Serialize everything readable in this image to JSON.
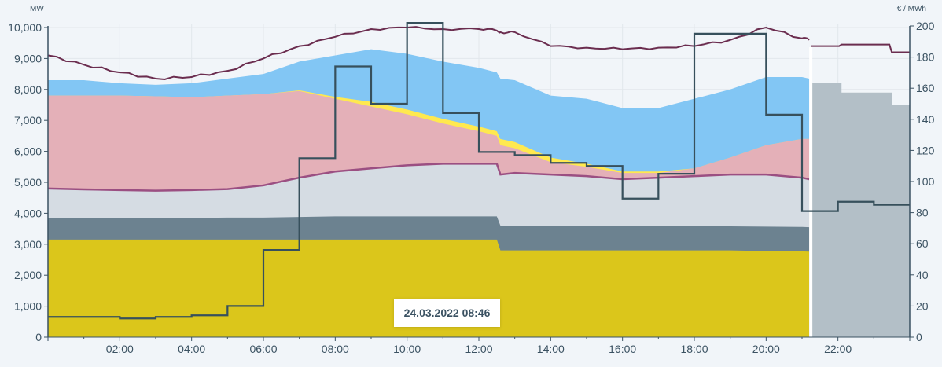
{
  "chart_data": {
    "type": "area",
    "left_axis": {
      "unit": "MW",
      "ylim": [
        0,
        10000
      ],
      "ticks": [
        "0",
        "1,000",
        "2,000",
        "3,000",
        "4,000",
        "5,000",
        "6,000",
        "7,000",
        "8,000",
        "9,000",
        "10,000"
      ]
    },
    "right_axis": {
      "unit": "€ / MWh",
      "ylim": [
        0,
        200
      ],
      "ticks": [
        "0",
        "20",
        "40",
        "60",
        "80",
        "100",
        "120",
        "140",
        "160",
        "180",
        "200"
      ]
    },
    "x_axis": {
      "range_hours": [
        0,
        24
      ],
      "ticks": [
        "02:00",
        "04:00",
        "06:00",
        "08:00",
        "10:00",
        "12:00",
        "14:00",
        "16:00",
        "18:00",
        "20:00",
        "22:00"
      ]
    },
    "grid": true,
    "x_hours": [
      0,
      1,
      2,
      3,
      4,
      5,
      6,
      7,
      8,
      9,
      10,
      11,
      12,
      12.5,
      12.6,
      13,
      14,
      15,
      16,
      17,
      18,
      19,
      20,
      21,
      21.2
    ],
    "stacked_areas_mw_top": [
      {
        "color": "#dbc61b",
        "values": [
          3150,
          3150,
          3150,
          3150,
          3150,
          3150,
          3150,
          3150,
          3150,
          3150,
          3150,
          3150,
          3150,
          3150,
          2800,
          2800,
          2800,
          2800,
          2800,
          2800,
          2800,
          2800,
          2780,
          2770,
          2760
        ]
      },
      {
        "color": "#6c8290",
        "values": [
          3850,
          3850,
          3840,
          3850,
          3850,
          3860,
          3860,
          3880,
          3900,
          3900,
          3900,
          3900,
          3900,
          3900,
          3600,
          3600,
          3600,
          3590,
          3580,
          3580,
          3580,
          3580,
          3570,
          3560,
          3550
        ]
      },
      {
        "color": "#d5dce3",
        "values": [
          4800,
          4770,
          4750,
          4730,
          4750,
          4780,
          4900,
          5150,
          5350,
          5450,
          5550,
          5600,
          5600,
          5600,
          5250,
          5300,
          5250,
          5200,
          5100,
          5150,
          5200,
          5250,
          5250,
          5150,
          5100
        ]
      },
      {
        "color": "#e4b0b8",
        "values": [
          7800,
          7800,
          7800,
          7780,
          7750,
          7800,
          7850,
          7950,
          7700,
          7450,
          7200,
          6900,
          6650,
          6500,
          6200,
          6100,
          5650,
          5500,
          5300,
          5300,
          5450,
          5800,
          6200,
          6400,
          6400
        ]
      },
      {
        "color": "#ffe94f",
        "values": [
          7800,
          7800,
          7800,
          7780,
          7750,
          7800,
          7850,
          7970,
          7760,
          7600,
          7350,
          7050,
          6800,
          6650,
          6400,
          6300,
          5800,
          5600,
          5350,
          5350,
          5450,
          5800,
          6200,
          6400,
          6400
        ]
      },
      {
        "color": "#82c6f4",
        "values": [
          8300,
          8300,
          8200,
          8150,
          8200,
          8350,
          8500,
          8900,
          9100,
          9300,
          9150,
          8900,
          8700,
          8550,
          8350,
          8300,
          7800,
          7700,
          7400,
          7400,
          7700,
          8000,
          8400,
          8400,
          8350
        ]
      }
    ],
    "load_line_mw": {
      "color": "#6b2d4f",
      "values": [
        9100,
        8800,
        8550,
        8350,
        8400,
        8600,
        9000,
        9400,
        9700,
        9950,
        10000,
        9950,
        9950,
        9900,
        9850,
        9850,
        9400,
        9350,
        9300,
        9350,
        9400,
        9600,
        10000,
        9650,
        9600
      ]
    },
    "forecast_area_mw": {
      "color": "#b3bfc7",
      "x_hours": [
        21.25,
        22.1,
        22.1,
        23.5,
        23.5,
        24
      ],
      "values": [
        8200,
        8200,
        7900,
        7900,
        7500,
        7500
      ]
    },
    "forecast_load_mw": {
      "x_hours": [
        21.25,
        22.1,
        23.5,
        24
      ],
      "values": [
        9400,
        9450,
        9200,
        9200
      ]
    },
    "price_eur_mwh": {
      "color": "#37505c",
      "hours": [
        0,
        1,
        2,
        3,
        4,
        5,
        6,
        7,
        8,
        9,
        10,
        11,
        12,
        13,
        14,
        15,
        16,
        17,
        18,
        19,
        20,
        21,
        22,
        23
      ],
      "values": [
        13,
        13,
        12,
        13,
        14,
        20,
        56,
        115,
        174,
        150,
        202,
        144,
        119,
        117,
        112,
        110,
        89,
        105,
        195,
        195,
        143,
        81,
        87,
        85
      ]
    },
    "now_marker_hour": 21.2,
    "tooltip": "24.03.2022 08:46"
  }
}
